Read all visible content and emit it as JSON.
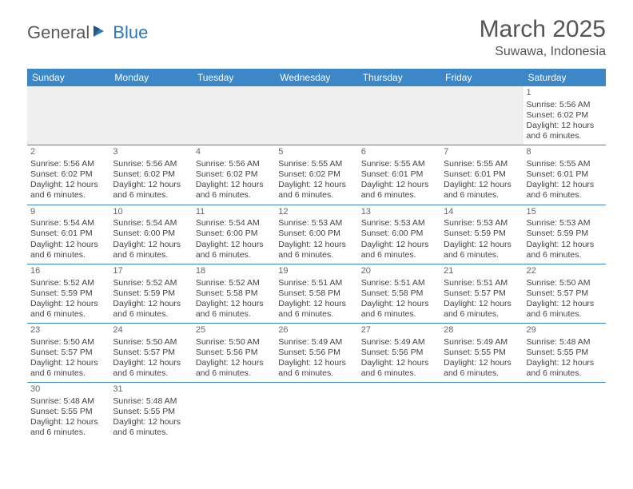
{
  "logo": {
    "general": "General",
    "blue": "Blue"
  },
  "title": {
    "month": "March 2025",
    "location": "Suwawa, Indonesia"
  },
  "colors": {
    "header_bg": "#3b87c8",
    "divider": "#3b87c8",
    "text": "#444444"
  },
  "dow": [
    "Sunday",
    "Monday",
    "Tuesday",
    "Wednesday",
    "Thursday",
    "Friday",
    "Saturday"
  ],
  "weeks": [
    [
      null,
      null,
      null,
      null,
      null,
      null,
      {
        "n": "1",
        "sunrise": "Sunrise: 5:56 AM",
        "sunset": "Sunset: 6:02 PM",
        "daylight": "Daylight: 12 hours and 6 minutes."
      }
    ],
    [
      {
        "n": "2",
        "sunrise": "Sunrise: 5:56 AM",
        "sunset": "Sunset: 6:02 PM",
        "daylight": "Daylight: 12 hours and 6 minutes."
      },
      {
        "n": "3",
        "sunrise": "Sunrise: 5:56 AM",
        "sunset": "Sunset: 6:02 PM",
        "daylight": "Daylight: 12 hours and 6 minutes."
      },
      {
        "n": "4",
        "sunrise": "Sunrise: 5:56 AM",
        "sunset": "Sunset: 6:02 PM",
        "daylight": "Daylight: 12 hours and 6 minutes."
      },
      {
        "n": "5",
        "sunrise": "Sunrise: 5:55 AM",
        "sunset": "Sunset: 6:02 PM",
        "daylight": "Daylight: 12 hours and 6 minutes."
      },
      {
        "n": "6",
        "sunrise": "Sunrise: 5:55 AM",
        "sunset": "Sunset: 6:01 PM",
        "daylight": "Daylight: 12 hours and 6 minutes."
      },
      {
        "n": "7",
        "sunrise": "Sunrise: 5:55 AM",
        "sunset": "Sunset: 6:01 PM",
        "daylight": "Daylight: 12 hours and 6 minutes."
      },
      {
        "n": "8",
        "sunrise": "Sunrise: 5:55 AM",
        "sunset": "Sunset: 6:01 PM",
        "daylight": "Daylight: 12 hours and 6 minutes."
      }
    ],
    [
      {
        "n": "9",
        "sunrise": "Sunrise: 5:54 AM",
        "sunset": "Sunset: 6:01 PM",
        "daylight": "Daylight: 12 hours and 6 minutes."
      },
      {
        "n": "10",
        "sunrise": "Sunrise: 5:54 AM",
        "sunset": "Sunset: 6:00 PM",
        "daylight": "Daylight: 12 hours and 6 minutes."
      },
      {
        "n": "11",
        "sunrise": "Sunrise: 5:54 AM",
        "sunset": "Sunset: 6:00 PM",
        "daylight": "Daylight: 12 hours and 6 minutes."
      },
      {
        "n": "12",
        "sunrise": "Sunrise: 5:53 AM",
        "sunset": "Sunset: 6:00 PM",
        "daylight": "Daylight: 12 hours and 6 minutes."
      },
      {
        "n": "13",
        "sunrise": "Sunrise: 5:53 AM",
        "sunset": "Sunset: 6:00 PM",
        "daylight": "Daylight: 12 hours and 6 minutes."
      },
      {
        "n": "14",
        "sunrise": "Sunrise: 5:53 AM",
        "sunset": "Sunset: 5:59 PM",
        "daylight": "Daylight: 12 hours and 6 minutes."
      },
      {
        "n": "15",
        "sunrise": "Sunrise: 5:53 AM",
        "sunset": "Sunset: 5:59 PM",
        "daylight": "Daylight: 12 hours and 6 minutes."
      }
    ],
    [
      {
        "n": "16",
        "sunrise": "Sunrise: 5:52 AM",
        "sunset": "Sunset: 5:59 PM",
        "daylight": "Daylight: 12 hours and 6 minutes."
      },
      {
        "n": "17",
        "sunrise": "Sunrise: 5:52 AM",
        "sunset": "Sunset: 5:59 PM",
        "daylight": "Daylight: 12 hours and 6 minutes."
      },
      {
        "n": "18",
        "sunrise": "Sunrise: 5:52 AM",
        "sunset": "Sunset: 5:58 PM",
        "daylight": "Daylight: 12 hours and 6 minutes."
      },
      {
        "n": "19",
        "sunrise": "Sunrise: 5:51 AM",
        "sunset": "Sunset: 5:58 PM",
        "daylight": "Daylight: 12 hours and 6 minutes."
      },
      {
        "n": "20",
        "sunrise": "Sunrise: 5:51 AM",
        "sunset": "Sunset: 5:58 PM",
        "daylight": "Daylight: 12 hours and 6 minutes."
      },
      {
        "n": "21",
        "sunrise": "Sunrise: 5:51 AM",
        "sunset": "Sunset: 5:57 PM",
        "daylight": "Daylight: 12 hours and 6 minutes."
      },
      {
        "n": "22",
        "sunrise": "Sunrise: 5:50 AM",
        "sunset": "Sunset: 5:57 PM",
        "daylight": "Daylight: 12 hours and 6 minutes."
      }
    ],
    [
      {
        "n": "23",
        "sunrise": "Sunrise: 5:50 AM",
        "sunset": "Sunset: 5:57 PM",
        "daylight": "Daylight: 12 hours and 6 minutes."
      },
      {
        "n": "24",
        "sunrise": "Sunrise: 5:50 AM",
        "sunset": "Sunset: 5:57 PM",
        "daylight": "Daylight: 12 hours and 6 minutes."
      },
      {
        "n": "25",
        "sunrise": "Sunrise: 5:50 AM",
        "sunset": "Sunset: 5:56 PM",
        "daylight": "Daylight: 12 hours and 6 minutes."
      },
      {
        "n": "26",
        "sunrise": "Sunrise: 5:49 AM",
        "sunset": "Sunset: 5:56 PM",
        "daylight": "Daylight: 12 hours and 6 minutes."
      },
      {
        "n": "27",
        "sunrise": "Sunrise: 5:49 AM",
        "sunset": "Sunset: 5:56 PM",
        "daylight": "Daylight: 12 hours and 6 minutes."
      },
      {
        "n": "28",
        "sunrise": "Sunrise: 5:49 AM",
        "sunset": "Sunset: 5:55 PM",
        "daylight": "Daylight: 12 hours and 6 minutes."
      },
      {
        "n": "29",
        "sunrise": "Sunrise: 5:48 AM",
        "sunset": "Sunset: 5:55 PM",
        "daylight": "Daylight: 12 hours and 6 minutes."
      }
    ],
    [
      {
        "n": "30",
        "sunrise": "Sunrise: 5:48 AM",
        "sunset": "Sunset: 5:55 PM",
        "daylight": "Daylight: 12 hours and 6 minutes."
      },
      {
        "n": "31",
        "sunrise": "Sunrise: 5:48 AM",
        "sunset": "Sunset: 5:55 PM",
        "daylight": "Daylight: 12 hours and 6 minutes."
      },
      null,
      null,
      null,
      null,
      null
    ]
  ]
}
